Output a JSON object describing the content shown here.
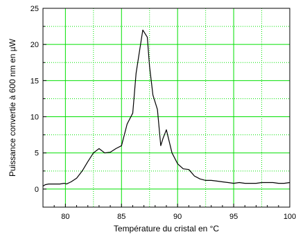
{
  "chart_data": {
    "type": "line",
    "xlabel": "Température du cristal en °C",
    "ylabel": "Puissance convertie à 600 nm en µW",
    "xlim": [
      78,
      100
    ],
    "ylim": [
      -2.5,
      25
    ],
    "x_ticks": [
      80,
      85,
      90,
      95,
      100
    ],
    "y_ticks": [
      0,
      5,
      10,
      15,
      20,
      25
    ],
    "x_tick_labels": [
      "80",
      "85",
      "90",
      "95",
      "100"
    ],
    "y_tick_labels": [
      "0",
      "5",
      "10",
      "15",
      "20",
      "25"
    ],
    "grid": {
      "major": "solid",
      "minor": "dotted",
      "color": "#00e000"
    },
    "line_color": "#000000",
    "series": [
      {
        "x": [
          78.0,
          78.2,
          78.5,
          79.0,
          79.5,
          79.9,
          80.1,
          80.5,
          81.0,
          81.5,
          82.0,
          82.5,
          83.0,
          83.5,
          84.0,
          84.5,
          85.0,
          85.5,
          86.0,
          86.3,
          86.5,
          86.9,
          87.3,
          87.5,
          87.8,
          88.2,
          88.5,
          88.7,
          89.0,
          89.5,
          90.0,
          90.5,
          91.0,
          91.5,
          92.0,
          92.5,
          93.0,
          93.5,
          94.0,
          94.5,
          95.0,
          95.5,
          96.0,
          96.5,
          97.0,
          97.5,
          98.0,
          98.5,
          99.0,
          99.5,
          100.0
        ],
        "y": [
          0.4,
          0.6,
          0.7,
          0.7,
          0.7,
          0.8,
          0.7,
          1.0,
          1.5,
          2.5,
          3.8,
          5.0,
          5.6,
          5.0,
          5.1,
          5.6,
          6.0,
          9.0,
          10.5,
          16.0,
          18.0,
          22.0,
          21.0,
          17.0,
          13.0,
          11.0,
          6.0,
          7.0,
          8.2,
          5.0,
          3.5,
          2.8,
          2.7,
          1.8,
          1.4,
          1.2,
          1.2,
          1.1,
          1.0,
          0.9,
          0.8,
          0.9,
          0.8,
          0.8,
          0.8,
          0.9,
          0.9,
          0.9,
          0.8,
          0.8,
          0.9
        ]
      }
    ]
  }
}
